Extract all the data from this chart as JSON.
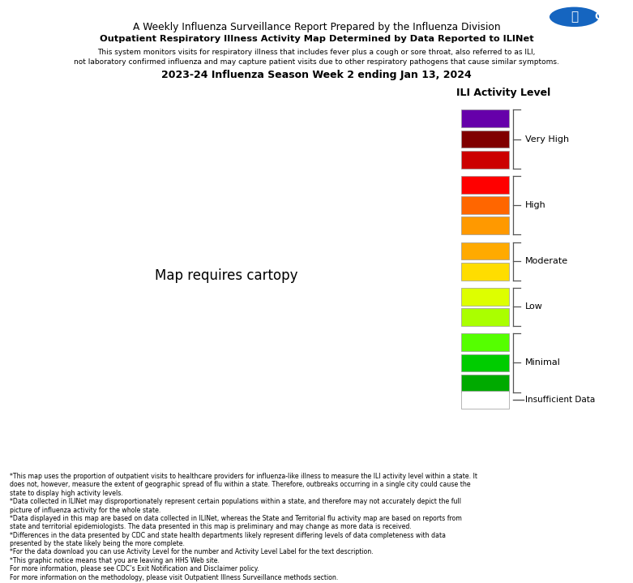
{
  "title_main": "A Weekly Influenza Surveillance Report Prepared by the Influenza Division",
  "title_sub": "Outpatient Respiratory Illness Activity Map Determined by Data Reported to ILINet",
  "title_desc1": "This system monitors visits for respiratory illness that includes fever plus a cough or sore throat, also referred to as ILI,",
  "title_desc2": "not laboratory confirmed influenza and may capture patient visits due to other respiratory pathogens that cause similar symptoms.",
  "title_season": "2023-24 Influenza Season Week 2 ending Jan 13, 2024",
  "legend_title": "ILI Activity Level",
  "state_colors": {
    "Alabama": "#800000",
    "Alaska": "#aaff00",
    "Arizona": "#ff6600",
    "Arkansas": "#ff0000",
    "California": "#ff0000",
    "Colorado": "#ffaa00",
    "Connecticut": "#ffdd00",
    "Delaware": "#ff9900",
    "Florida": "#ff6600",
    "Georgia": "#800000",
    "Hawaii": "#aaff00",
    "Idaho": "#ff6600",
    "Illinois": "#ffdd00",
    "Indiana": "#ff9900",
    "Iowa": "#ffdd00",
    "Kansas": "#ffdd00",
    "Kentucky": "#ff6600",
    "Louisiana": "#ff0000",
    "Maine": "#ffdd00",
    "Maryland": "#ff6600",
    "Massachusetts": "#ff0000",
    "Michigan": "#ff9900",
    "Minnesota": "#00cc00",
    "Mississippi": "#cc0000",
    "Missouri": "#ff0000",
    "Montana": "#ffaa00",
    "Nebraska": "#ff9900",
    "Nevada": "#ff6600",
    "New Hampshire": "#ff9900",
    "New Jersey": "#ff6600",
    "New Mexico": "#800000",
    "New York": "#ffdd00",
    "North Carolina": "#ff6600",
    "North Dakota": "#cc0000",
    "Ohio": "#ff6600",
    "Oklahoma": "#ffdd00",
    "Oregon": "#ff9900",
    "Pennsylvania": "#ff6600",
    "Rhode Island": "#ff9900",
    "South Carolina": "#800000",
    "South Dakota": "#ffdd00",
    "Tennessee": "#6600aa",
    "Texas": "#ff6600",
    "Utah": "#ff9900",
    "Vermont": "#55ff00",
    "Virginia": "#ff9900",
    "Washington": "#ffdd00",
    "West Virginia": "#ff9900",
    "Wisconsin": "#00cc00",
    "Wyoming": "#800000",
    "District of Columbia": "#ff0000",
    "Puerto Rico": "#ffdd00",
    "Virgin Islands": "#ffdd00"
  },
  "legend_box_colors": [
    "#6600aa",
    "#800000",
    "#cc0000",
    "#ff0000",
    "#ff6600",
    "#ff9900",
    "#ffaa00",
    "#ffdd00",
    "#ddff00",
    "#aaff00",
    "#55ff00",
    "#00cc00",
    "#00aa00",
    "#ffffff"
  ],
  "legend_groups": [
    {
      "label": "Very High",
      "count": 3
    },
    {
      "label": "High",
      "count": 3
    },
    {
      "label": "Moderate",
      "count": 2
    },
    {
      "label": "Low",
      "count": 2
    },
    {
      "label": "Minimal",
      "count": 3
    }
  ],
  "footnotes": [
    "*This map uses the proportion of outpatient visits to healthcare providers for influenza-like illness to measure the ILI activity level within a state. It",
    "does not, however, measure the extent of geographic spread of flu within a state. Therefore, outbreaks occurring in a single city could cause the",
    "state to display high activity levels.",
    "*Data collected in ILINet may disproportionately represent certain populations within a state, and therefore may not accurately depict the full",
    "picture of influenza activity for the whole state.",
    "*Data displayed in this map are based on data collected in ILINet, whereas the State and Territorial flu activity map are based on reports from",
    "state and territorial epidemiologists. The data presented in this map is preliminary and may change as more data is received.",
    "*Differences in the data presented by CDC and state health departments likely represent differing levels of data completeness with data",
    "presented by the state likely being the more complete.",
    "*For the data download you can use Activity Level for the number and Activity Level Label for the text description.",
    "*This graphic notice means that you are leaving an HHS Web site.",
    "For more information, please see CDC’s Exit Notification and Disclaimer policy.",
    "For more information on the methodology, please visit Outpatient Illness Surveillance methods section."
  ],
  "mariana_color": "#00cc00",
  "nyc_color": "#ff0000",
  "ak_color": "#aaff00",
  "hi_color": "#aaff00",
  "pr_color": "#ffdd00",
  "vi_color": "#ffdd00",
  "dc_color": "#ff0000"
}
